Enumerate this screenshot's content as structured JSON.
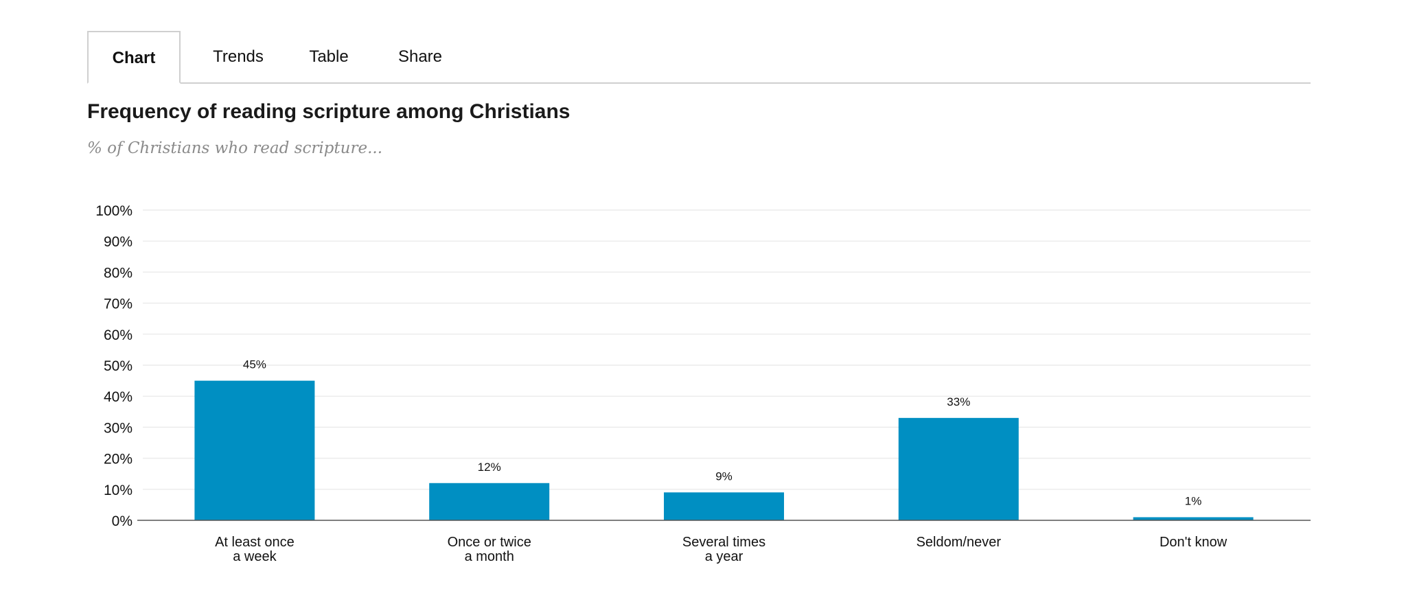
{
  "tabs": [
    {
      "label": "Chart",
      "active": true
    },
    {
      "label": "Trends",
      "active": false
    },
    {
      "label": "Table",
      "active": false
    },
    {
      "label": "Share",
      "active": false
    }
  ],
  "bar_color": "#008fc2",
  "chart_data": {
    "type": "bar",
    "title": "Frequency of reading scripture among Christians",
    "subtitle": "% of Christians who read scripture...",
    "categories": [
      [
        "At least once",
        "a week"
      ],
      [
        "Once or twice",
        "a month"
      ],
      [
        "Several times",
        "a year"
      ],
      [
        "Seldom/never"
      ],
      [
        "Don't know"
      ]
    ],
    "values": [
      45,
      12,
      9,
      33,
      1
    ],
    "data_labels": [
      "45%",
      "12%",
      "9%",
      "33%",
      "1%"
    ],
    "ylim": [
      0,
      100
    ],
    "yticks": [
      0,
      10,
      20,
      30,
      40,
      50,
      60,
      70,
      80,
      90,
      100
    ],
    "ytick_labels": [
      "0%",
      "10%",
      "20%",
      "30%",
      "40%",
      "50%",
      "60%",
      "70%",
      "80%",
      "90%",
      "100%"
    ],
    "grid": true,
    "legend": "none"
  }
}
